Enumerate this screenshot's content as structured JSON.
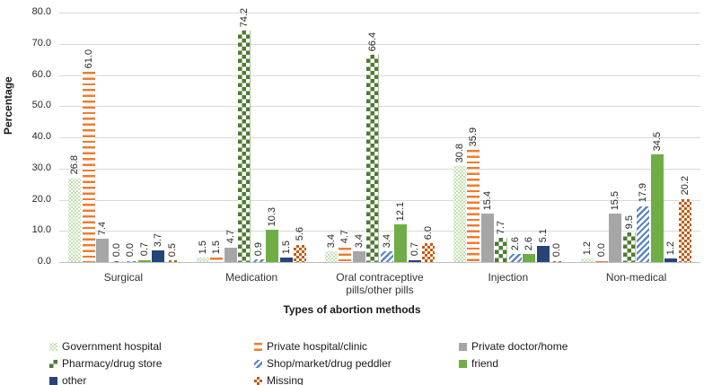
{
  "chart_data": {
    "type": "bar",
    "title": "",
    "xlabel": "Types of abortion methods",
    "ylabel": "Percentage",
    "ylim": [
      0,
      80
    ],
    "ytick_step": 10,
    "ytick_format_decimals": 1,
    "grid": true,
    "value_labels": true,
    "value_label_rotation": 90,
    "legend_position": "bottom",
    "legend_columns": 3,
    "background_color": "#ffffff",
    "gridline_color": "#d9d9d9",
    "categories": [
      "Surgical",
      "Medication",
      "Oral contraceptive pills/other pills",
      "Injection",
      "Non-medical"
    ],
    "series": [
      {
        "name": "Government hospital",
        "pattern": "dots",
        "color": "#c6e0b4",
        "values": [
          26.8,
          1.5,
          3.4,
          30.8,
          1.2
        ]
      },
      {
        "name": "Private hospital/clinic",
        "pattern": "hlines",
        "color": "#ed7d31",
        "values": [
          61.0,
          1.5,
          4.7,
          35.9,
          0.0
        ]
      },
      {
        "name": "Private doctor/home",
        "pattern": "solid",
        "color": "#a6a6a6",
        "values": [
          7.4,
          4.7,
          3.4,
          15.4,
          15.5
        ]
      },
      {
        "name": "Pharmacy/drug store",
        "pattern": "checker",
        "color": "#4e7a32",
        "values": [
          0.0,
          74.2,
          66.4,
          7.7,
          9.5
        ]
      },
      {
        "name": "Shop/market/drug peddler",
        "pattern": "diag",
        "color": "#5b84c4",
        "values": [
          0.0,
          0.9,
          3.4,
          2.6,
          17.9
        ]
      },
      {
        "name": "friend",
        "pattern": "solid",
        "color": "#70ad47",
        "values": [
          0.7,
          10.3,
          12.1,
          2.6,
          34.5
        ]
      },
      {
        "name": "other",
        "pattern": "solid",
        "color": "#264478",
        "values": [
          3.7,
          1.5,
          0.7,
          5.1,
          1.2
        ]
      },
      {
        "name": "Missing",
        "pattern": "checker-fine",
        "color": "#c55a11",
        "values": [
          0.5,
          5.6,
          6.0,
          0.0,
          20.2
        ]
      }
    ]
  }
}
